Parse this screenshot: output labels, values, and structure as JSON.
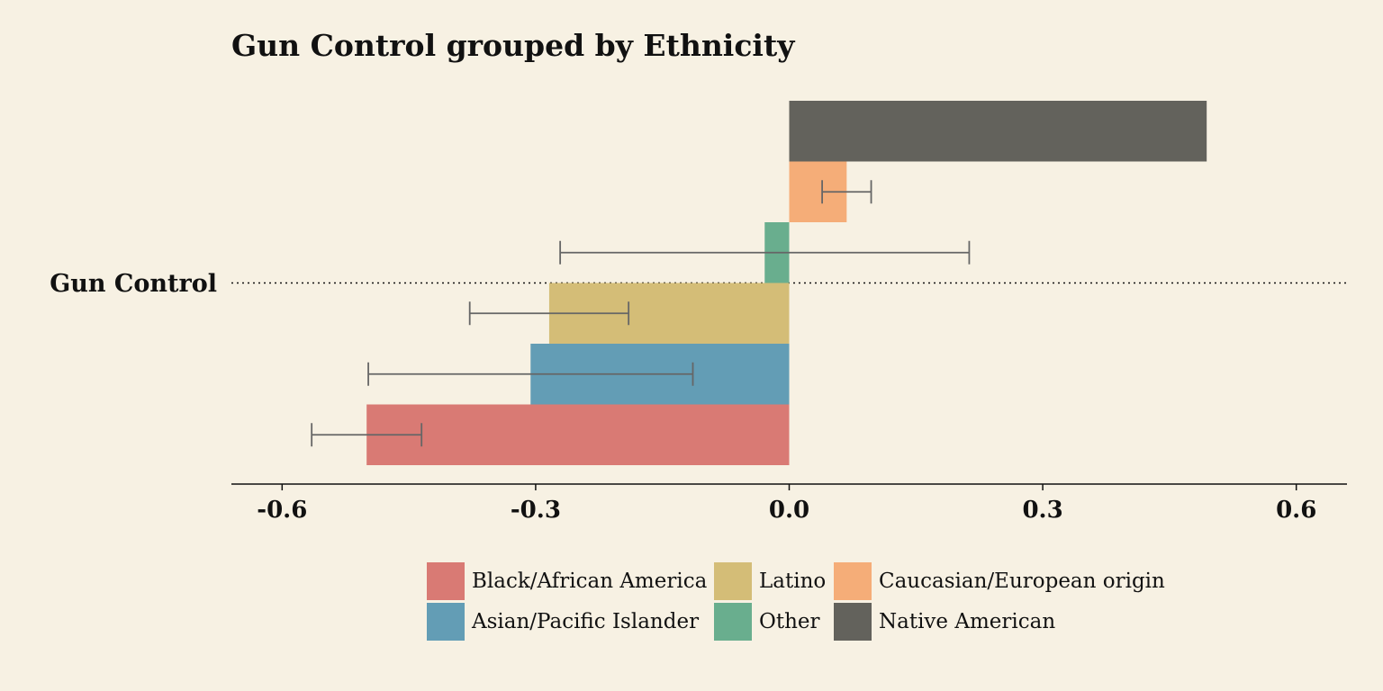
{
  "chart_data": {
    "type": "bar",
    "orientation": "horizontal",
    "title": "Gun Control grouped by Ethnicity",
    "categories": [
      "Gun Control"
    ],
    "series": [
      {
        "name": "Black/African America",
        "color": "#d97a74",
        "values": [
          -0.5
        ],
        "errors": [
          0.065
        ]
      },
      {
        "name": "Asian/Pacific Islander",
        "color": "#639db5",
        "values": [
          -0.306
        ],
        "errors": [
          0.192
        ]
      },
      {
        "name": "Latino",
        "color": "#d4bd77",
        "values": [
          -0.284
        ],
        "errors": [
          0.094
        ]
      },
      {
        "name": "Other",
        "color": "#69ae8e",
        "values": [
          -0.029
        ],
        "errors": [
          0.242
        ]
      },
      {
        "name": "Caucasian/European origin",
        "color": "#f5ad78",
        "values": [
          0.068
        ],
        "errors": [
          0.029
        ]
      },
      {
        "name": "Native American",
        "color": "#63625c",
        "values": [
          0.494
        ],
        "errors": [
          null
        ]
      }
    ],
    "xlim": [
      -0.66,
      0.66
    ],
    "xticks": [
      -0.6,
      -0.3,
      {
        "value": 0,
        "label": "0.0"
      },
      0.3,
      0.6
    ]
  }
}
